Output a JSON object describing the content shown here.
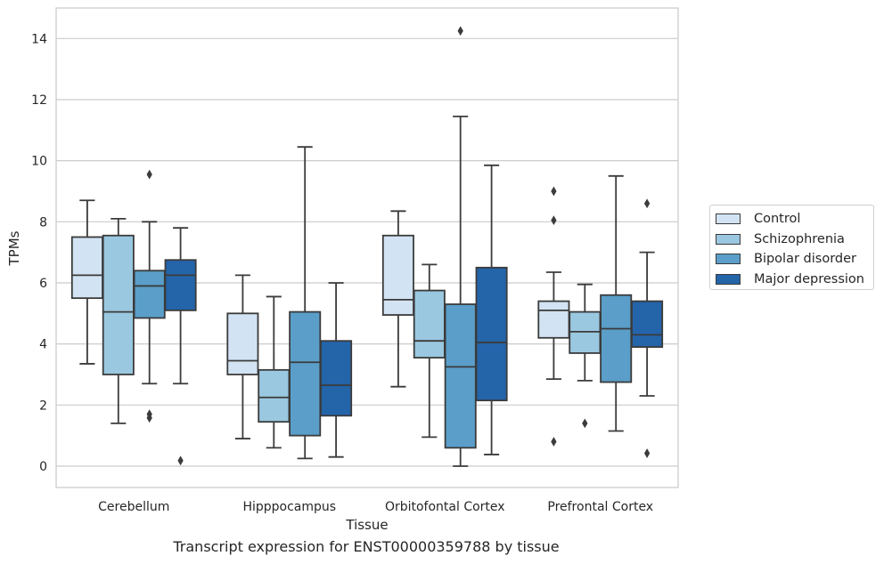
{
  "caption": "Transcript expression for ENST00000359788 by tissue",
  "chart_data": {
    "type": "boxplot",
    "title": "",
    "xlabel": "Tissue",
    "ylabel": "TPMs",
    "ylim": [
      -0.7,
      15.0
    ],
    "yticks": [
      0,
      2,
      4,
      6,
      8,
      10,
      12,
      14
    ],
    "grid": "y",
    "legend_position": "right",
    "categories": [
      "Cerebellum",
      "Hipppocampus",
      "Orbitofontal Cortex",
      "Prefrontal Cortex"
    ],
    "series": [
      {
        "name": "Control",
        "color": "#d2e3f3",
        "boxes": [
          {
            "whislo": 3.35,
            "q1": 5.5,
            "med": 6.25,
            "q3": 7.5,
            "whishi": 8.7,
            "fliers": []
          },
          {
            "whislo": 0.9,
            "q1": 3.0,
            "med": 3.45,
            "q3": 5.0,
            "whishi": 6.25,
            "fliers": []
          },
          {
            "whislo": 2.6,
            "q1": 4.95,
            "med": 5.45,
            "q3": 7.55,
            "whishi": 8.35,
            "fliers": []
          },
          {
            "whislo": 2.85,
            "q1": 4.2,
            "med": 5.1,
            "q3": 5.4,
            "whishi": 6.35,
            "fliers": [
              9.0,
              8.05,
              0.8
            ]
          }
        ]
      },
      {
        "name": "Schizophrenia",
        "color": "#9ac8e0",
        "boxes": [
          {
            "whislo": 1.4,
            "q1": 3.0,
            "med": 5.05,
            "q3": 7.55,
            "whishi": 8.1,
            "fliers": []
          },
          {
            "whislo": 0.6,
            "q1": 1.45,
            "med": 2.25,
            "q3": 3.15,
            "whishi": 5.55,
            "fliers": []
          },
          {
            "whislo": 0.95,
            "q1": 3.55,
            "med": 4.1,
            "q3": 5.75,
            "whishi": 6.6,
            "fliers": []
          },
          {
            "whislo": 2.8,
            "q1": 3.7,
            "med": 4.4,
            "q3": 5.05,
            "whishi": 5.95,
            "fliers": [
              1.4
            ]
          }
        ]
      },
      {
        "name": "Bipolar disorder",
        "color": "#5a9ec9",
        "boxes": [
          {
            "whislo": 2.7,
            "q1": 4.85,
            "med": 5.9,
            "q3": 6.4,
            "whishi": 8.0,
            "fliers": [
              9.55,
              1.7,
              1.58
            ]
          },
          {
            "whislo": 0.25,
            "q1": 1.0,
            "med": 3.4,
            "q3": 5.05,
            "whishi": 10.45,
            "fliers": []
          },
          {
            "whislo": 0.0,
            "q1": 0.6,
            "med": 3.25,
            "q3": 5.3,
            "whishi": 11.45,
            "fliers": [
              14.25
            ]
          },
          {
            "whislo": 1.15,
            "q1": 2.75,
            "med": 4.5,
            "q3": 5.6,
            "whishi": 9.5,
            "fliers": []
          }
        ]
      },
      {
        "name": "Major depression",
        "color": "#2464a9",
        "boxes": [
          {
            "whislo": 2.7,
            "q1": 5.1,
            "med": 6.25,
            "q3": 6.75,
            "whishi": 7.8,
            "fliers": [
              0.18
            ]
          },
          {
            "whislo": 0.3,
            "q1": 1.65,
            "med": 2.65,
            "q3": 4.1,
            "whishi": 6.0,
            "fliers": []
          },
          {
            "whislo": 0.38,
            "q1": 2.15,
            "med": 4.05,
            "q3": 6.5,
            "whishi": 9.85,
            "fliers": []
          },
          {
            "whislo": 2.3,
            "q1": 3.9,
            "med": 4.3,
            "q3": 5.4,
            "whishi": 7.0,
            "fliers": [
              8.6,
              0.42
            ]
          }
        ]
      }
    ]
  }
}
